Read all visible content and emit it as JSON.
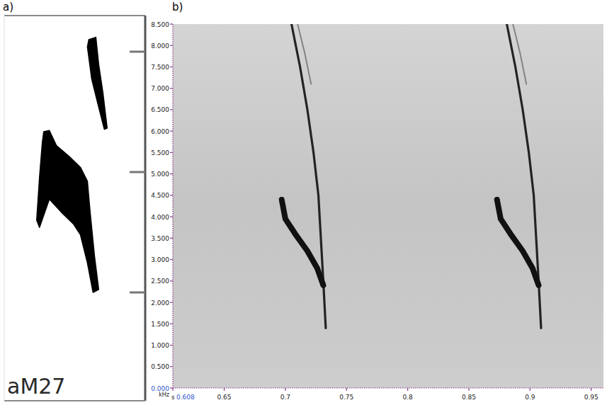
{
  "chart_data": [
    {
      "type": "sketch",
      "title": "a)",
      "annotations": [
        "aM27"
      ],
      "xlim": [
        0,
        1
      ],
      "ylim": [
        1.0,
        6.6
      ],
      "yticks": [
        2,
        4,
        6
      ],
      "tick_labels": false,
      "series": [
        {
          "type": "area",
          "color": "#000000",
          "x": [
            0.6,
            0.65,
            0.67,
            0.7,
            0.73,
            0.71,
            0.67,
            0.62,
            0.59
          ],
          "values": [
            6.2,
            6.24,
            5.79,
            5.32,
            4.73,
            4.71,
            5.08,
            5.55,
            6.08
          ]
        },
        {
          "type": "area",
          "color": "#000000",
          "x": [
            0.28,
            0.32,
            0.37,
            0.46,
            0.54,
            0.59,
            0.61,
            0.64,
            0.67,
            0.63,
            0.59,
            0.54,
            0.49,
            0.41,
            0.32,
            0.25,
            0.23,
            0.25,
            0.27
          ],
          "values": [
            4.67,
            4.69,
            4.44,
            4.26,
            4.08,
            3.85,
            3.32,
            2.61,
            2.05,
            2.0,
            2.49,
            2.96,
            3.14,
            3.32,
            3.55,
            3.08,
            3.2,
            3.91,
            4.49
          ]
        }
      ]
    },
    {
      "type": "line",
      "title": "b)",
      "x_label": "s",
      "y_label": "kHz",
      "xlim": [
        0.608,
        0.96
      ],
      "ylim": [
        0,
        8.5
      ],
      "xticks": [
        0.608,
        0.65,
        0.7,
        0.75,
        0.8,
        0.85,
        0.9,
        0.95
      ],
      "yticks": [
        {
          "value": 0,
          "label": "0.000"
        },
        {
          "value": 0.5,
          "label": "0.500"
        },
        {
          "value": 1,
          "label": "1.000"
        },
        {
          "value": 1.5,
          "label": "1.500"
        },
        {
          "value": 2,
          "label": "2.000"
        },
        {
          "value": 2.5,
          "label": "2.500"
        },
        {
          "value": 3,
          "label": "3.000"
        },
        {
          "value": 3.5,
          "label": "3.500"
        },
        {
          "value": 4,
          "label": "4.000"
        },
        {
          "value": 4.5,
          "label": "4.500"
        },
        {
          "value": 5,
          "label": "5.000"
        },
        {
          "value": 5.5,
          "label": "5.500"
        },
        {
          "value": 6,
          "label": "6.000"
        },
        {
          "value": 6.5,
          "label": "6.500"
        },
        {
          "value": 7,
          "label": "7.000"
        },
        {
          "value": 7.5,
          "label": "7.500"
        },
        {
          "value": 8,
          "label": "8.000"
        },
        {
          "value": 8.5,
          "label": "8.500"
        }
      ],
      "grid": false,
      "series": [
        {
          "color": "#1a1a1a",
          "line_style": "solid",
          "x": [
            0.705,
            0.712,
            0.718,
            0.723,
            0.727,
            0.729,
            0.731,
            0.733
          ],
          "values": [
            8.5,
            7.5,
            6.5,
            5.5,
            4.5,
            3.5,
            2.5,
            1.4
          ]
        },
        {
          "color": "#111111",
          "line_style": "bold",
          "x": [
            0.697,
            0.7,
            0.708,
            0.718,
            0.726,
            0.731
          ],
          "values": [
            4.4,
            3.95,
            3.6,
            3.2,
            2.8,
            2.4
          ]
        },
        {
          "color": "#444444",
          "line_style": "faint",
          "x": [
            0.71,
            0.716,
            0.721
          ],
          "values": [
            8.5,
            7.8,
            7.1
          ]
        },
        {
          "color": "#1a1a1a",
          "line_style": "solid",
          "x": [
            0.881,
            0.888,
            0.894,
            0.899,
            0.903,
            0.905,
            0.907,
            0.909
          ],
          "values": [
            8.5,
            7.5,
            6.5,
            5.5,
            4.5,
            3.5,
            2.5,
            1.4
          ]
        },
        {
          "color": "#111111",
          "line_style": "bold",
          "x": [
            0.873,
            0.876,
            0.884,
            0.894,
            0.902,
            0.907
          ],
          "values": [
            4.4,
            3.95,
            3.6,
            3.2,
            2.8,
            2.4
          ]
        },
        {
          "color": "#444444",
          "line_style": "faint",
          "x": [
            0.886,
            0.892,
            0.897
          ],
          "values": [
            8.5,
            7.8,
            7.1
          ]
        }
      ]
    }
  ]
}
